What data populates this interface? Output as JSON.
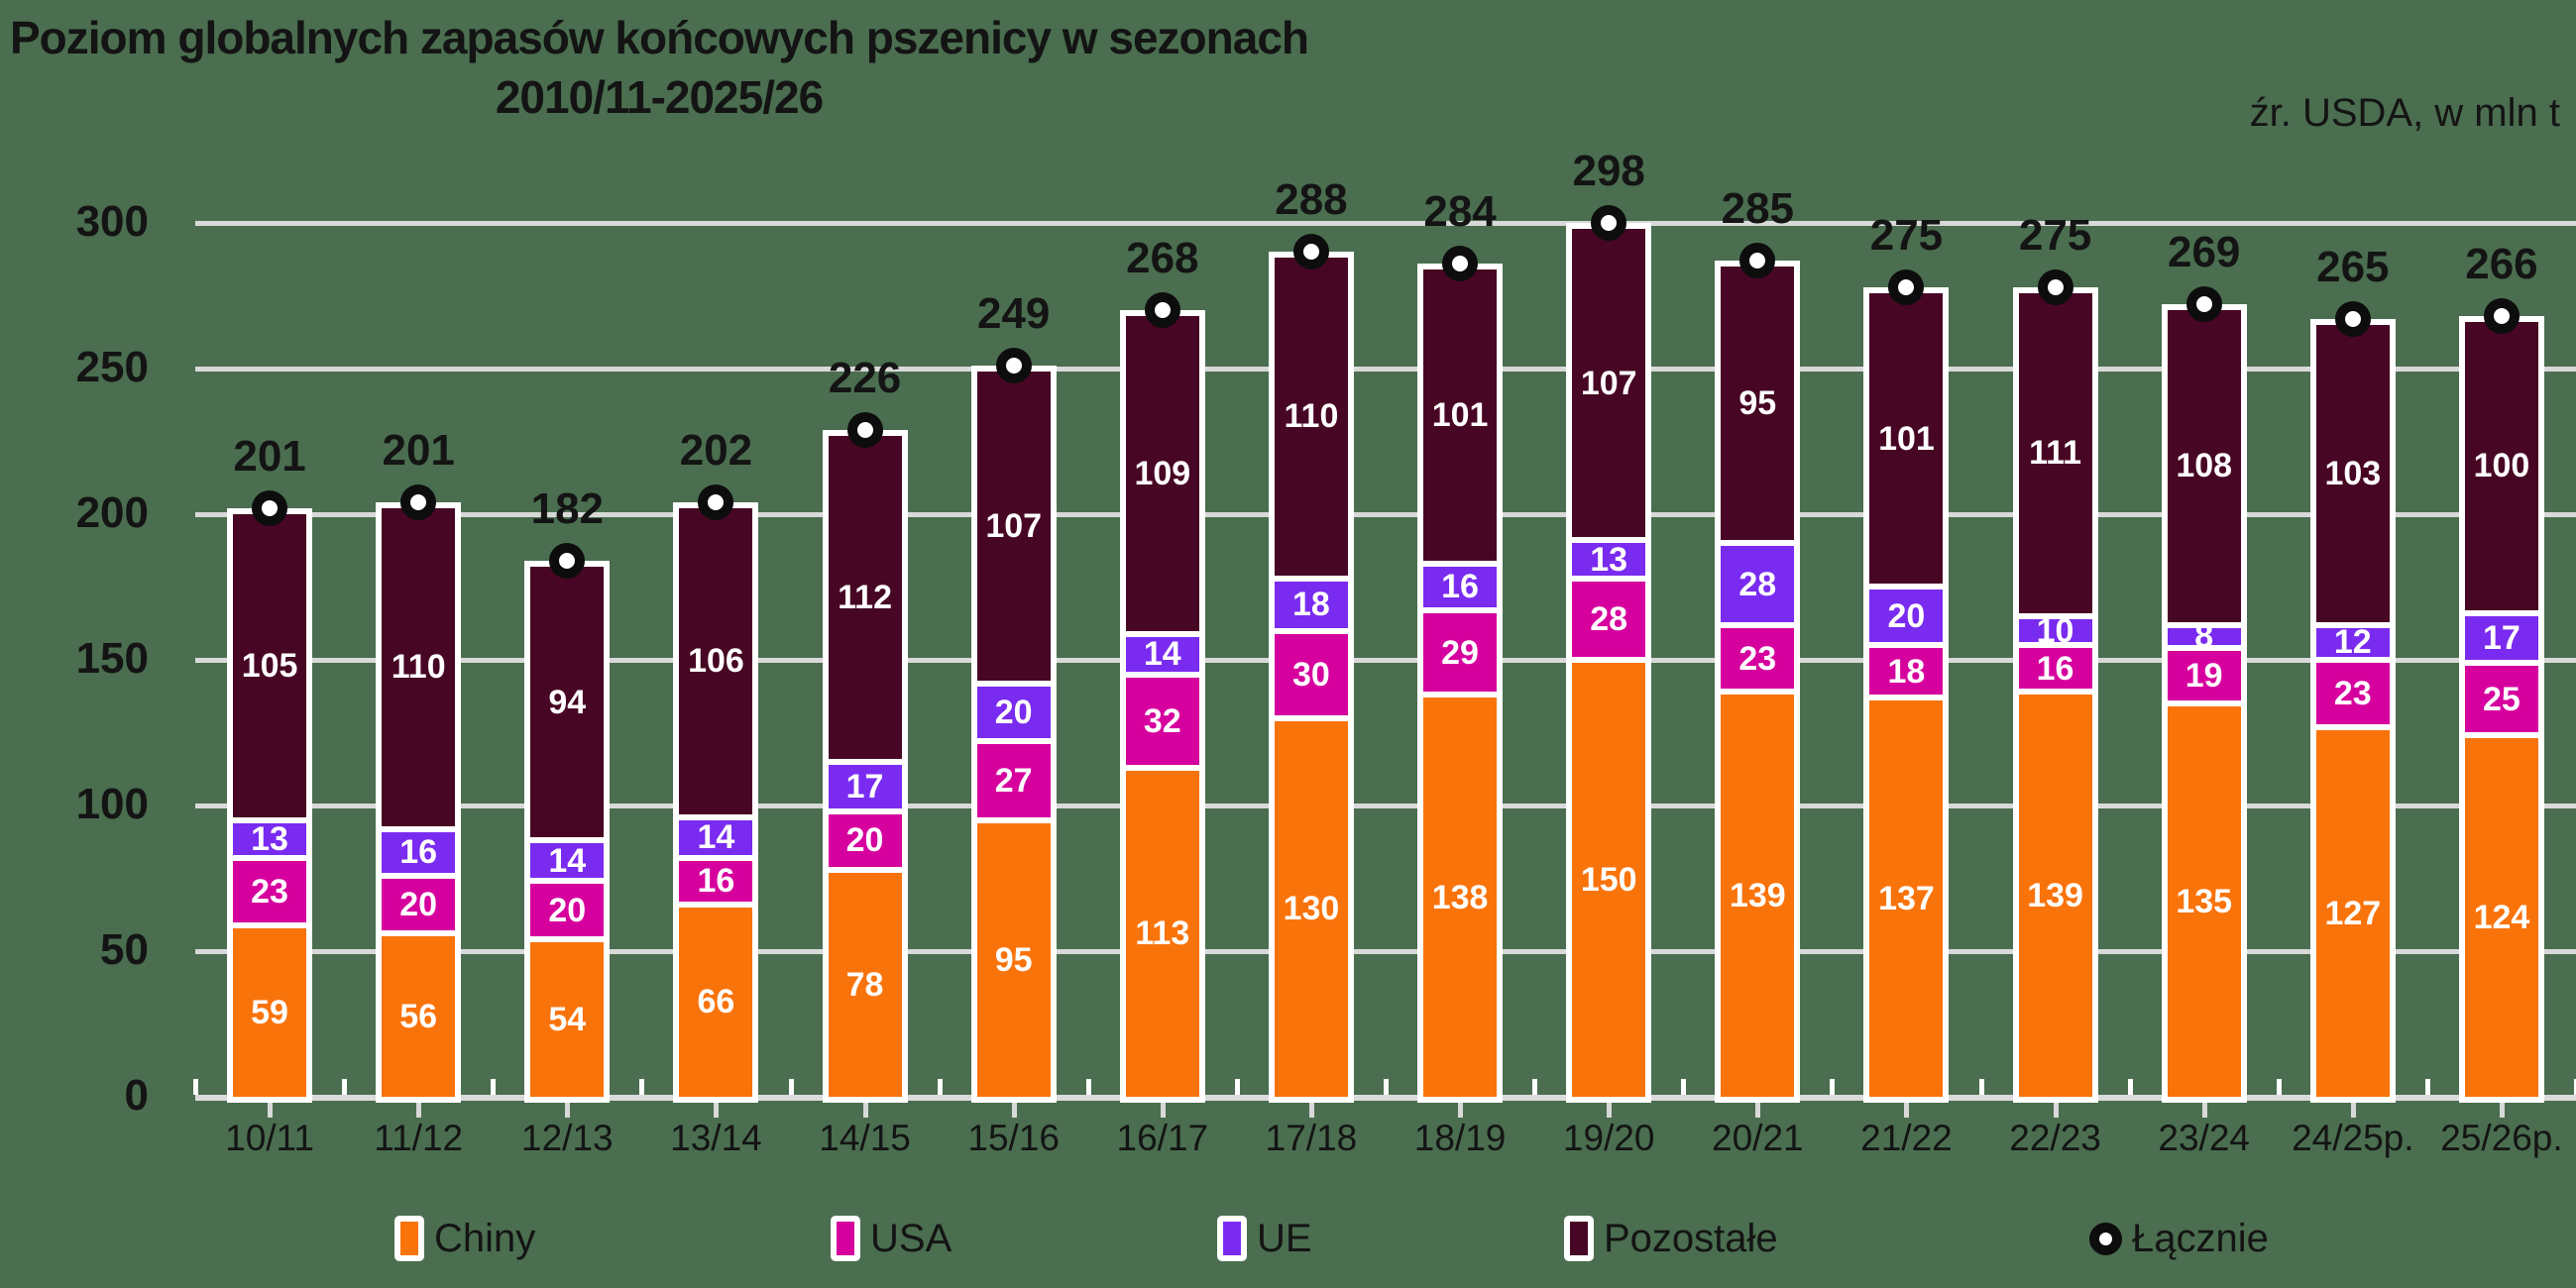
{
  "title": {
    "line1": "Poziom globalnych zapasów końcowych pszenicy w sezonach",
    "line2": "2010/11-2025/26"
  },
  "source_note": "źr. USDA, w mln t",
  "colors": {
    "background": "#4A6E4F",
    "chiny": "#F9730B",
    "usa": "#D6009E",
    "ue": "#7A2BF0",
    "pozostale": "#470724",
    "gridline": "#D9D9D9",
    "bar_border": "#FFFFFF",
    "text": "#141414",
    "value_text": "#FFFFFF",
    "marker_ring": "#0D0D0D",
    "marker_fill": "#FFFFFF"
  },
  "y_axis": {
    "ticks": [
      0,
      50,
      100,
      150,
      200,
      250,
      300
    ]
  },
  "chart_data": {
    "type": "bar",
    "stacked": true,
    "title": "Poziom globalnych zapasów końcowych pszenicy w sezonach 2010/11-2025/26",
    "unit": "mln t",
    "ylim": [
      0,
      300
    ],
    "grid": true,
    "legend_position": "bottom",
    "categories": [
      "10/11",
      "11/12",
      "12/13",
      "13/14",
      "14/15",
      "15/16",
      "16/17",
      "17/18",
      "18/19",
      "19/20",
      "20/21",
      "21/22",
      "22/23",
      "23/24",
      "24/25p.",
      "25/26p."
    ],
    "series": [
      {
        "name": "Chiny",
        "color_key": "chiny",
        "values": [
          59,
          56,
          54,
          66,
          78,
          95,
          113,
          130,
          138,
          150,
          139,
          137,
          139,
          135,
          127,
          124
        ]
      },
      {
        "name": "USA",
        "color_key": "usa",
        "values": [
          23,
          20,
          20,
          16,
          20,
          27,
          32,
          30,
          29,
          28,
          23,
          18,
          16,
          19,
          23,
          25
        ]
      },
      {
        "name": "UE",
        "color_key": "ue",
        "values": [
          13,
          16,
          14,
          14,
          17,
          20,
          14,
          18,
          16,
          13,
          28,
          20,
          10,
          8,
          12,
          17
        ]
      },
      {
        "name": "Pozostałe",
        "color_key": "pozostale",
        "values": [
          105,
          110,
          94,
          106,
          112,
          107,
          109,
          110,
          101,
          107,
          95,
          101,
          111,
          108,
          103,
          100
        ]
      }
    ],
    "totals": {
      "name": "Łącznie",
      "values": [
        201,
        201,
        182,
        202,
        226,
        249,
        268,
        288,
        284,
        298,
        285,
        275,
        275,
        269,
        265,
        266
      ]
    }
  },
  "legend": {
    "items": [
      {
        "id": "chiny",
        "label": "Chiny",
        "type": "swatch",
        "color_key": "chiny"
      },
      {
        "id": "usa",
        "label": "USA",
        "type": "swatch",
        "color_key": "usa"
      },
      {
        "id": "ue",
        "label": "UE",
        "type": "swatch",
        "color_key": "ue"
      },
      {
        "id": "pozostale",
        "label": "Pozostałe",
        "type": "swatch",
        "color_key": "pozostale"
      },
      {
        "id": "lacznie",
        "label": "Łącznie",
        "type": "circle-marker"
      }
    ]
  }
}
